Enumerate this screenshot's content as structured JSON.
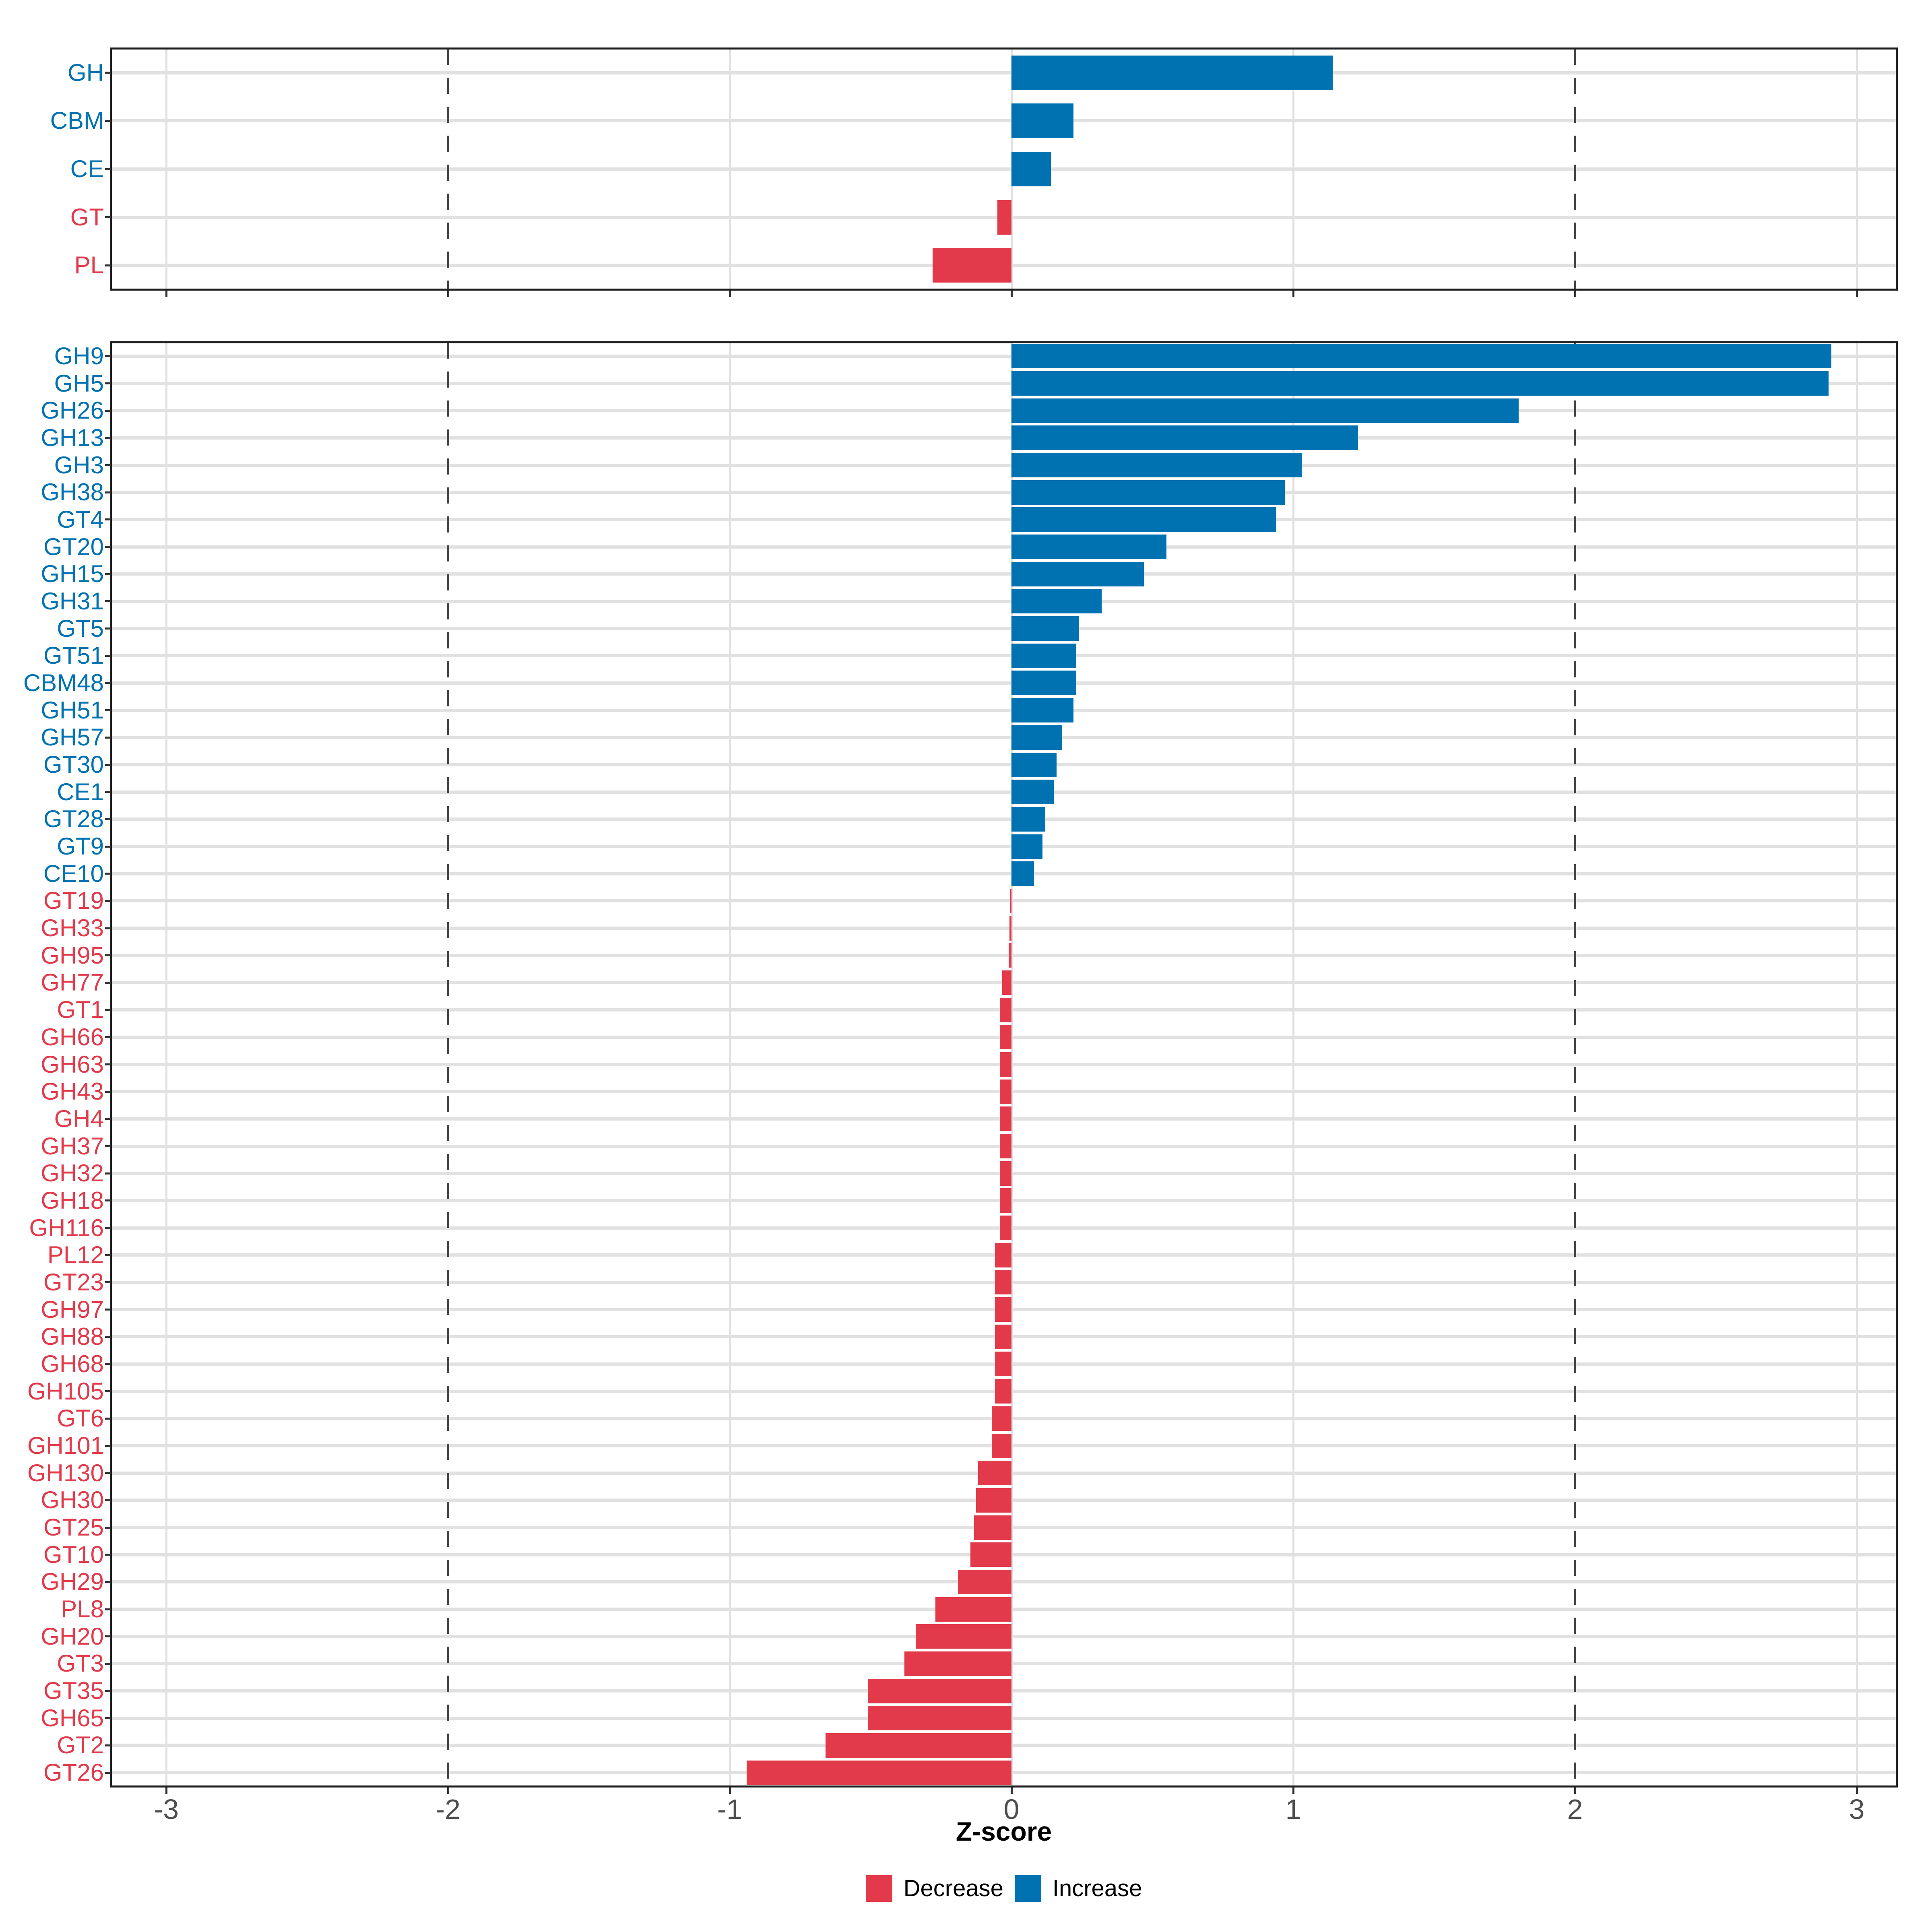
{
  "figure": {
    "xlabel": "Z-score",
    "x_tick_labels": [
      "-3",
      "-2",
      "-1",
      "0",
      "1",
      "2",
      "3"
    ],
    "legend": {
      "position": "bottom",
      "items": [
        {
          "label": "Decrease",
          "color": "#e2394b",
          "direction": "negative"
        },
        {
          "label": "Increase",
          "color": "#0072b2",
          "direction": "positive"
        }
      ]
    },
    "colors": {
      "increase_bar": "#0072b2",
      "decrease_bar": "#e2394b",
      "grid_line": "#e1e1e1",
      "dashed_reference_line": "#3e3e3e",
      "axis_tick_label": "#4d4d4d",
      "panel_border": "#1f1f1f",
      "background": "#ffffff"
    }
  },
  "chart_data": [
    {
      "type": "bar",
      "panel": "top-classes",
      "orientation": "horizontal",
      "title": "",
      "xlabel": "Z-score",
      "ylabel": "",
      "xlim": [
        -3.2,
        3.14
      ],
      "xticks": [
        -3,
        -2,
        -1,
        0,
        1,
        2,
        3
      ],
      "reference_lines": [
        -2,
        2
      ],
      "grid": true,
      "categories": [
        "GH",
        "CBM",
        "CE",
        "GT",
        "PL"
      ],
      "values": [
        1.14,
        0.22,
        0.14,
        -0.05,
        -0.28
      ]
    },
    {
      "type": "bar",
      "panel": "bottom-families",
      "orientation": "horizontal",
      "title": "",
      "xlabel": "Z-score",
      "ylabel": "",
      "xlim": [
        -3.2,
        3.14
      ],
      "xticks": [
        -3,
        -2,
        -1,
        0,
        1,
        2,
        3
      ],
      "reference_lines": [
        -2,
        2
      ],
      "grid": true,
      "categories": [
        "GH9",
        "GH5",
        "GH26",
        "GH13",
        "GH3",
        "GH38",
        "GT4",
        "GT20",
        "GH15",
        "GH31",
        "GT5",
        "GT51",
        "CBM48",
        "GH51",
        "GH57",
        "GT30",
        "CE1",
        "GT28",
        "GT9",
        "CE10",
        "GT19",
        "GH33",
        "GH95",
        "GH77",
        "GT1",
        "GH66",
        "GH63",
        "GH43",
        "GH4",
        "GH37",
        "GH32",
        "GH18",
        "GH116",
        "PL12",
        "GT23",
        "GH97",
        "GH88",
        "GH68",
        "GH105",
        "GT6",
        "GH101",
        "GH130",
        "GH30",
        "GT25",
        "GT10",
        "GH29",
        "PL8",
        "GH20",
        "GT3",
        "GT35",
        "GH65",
        "GT2",
        "GT26"
      ],
      "values": [
        2.91,
        2.9,
        1.8,
        1.23,
        1.03,
        0.97,
        0.94,
        0.55,
        0.47,
        0.32,
        0.24,
        0.23,
        0.23,
        0.22,
        0.18,
        0.16,
        0.15,
        0.12,
        0.11,
        0.08,
        -0.005,
        -0.007,
        -0.01,
        -0.033,
        -0.042,
        -0.042,
        -0.042,
        -0.042,
        -0.042,
        -0.042,
        -0.042,
        -0.042,
        -0.042,
        -0.058,
        -0.058,
        -0.058,
        -0.058,
        -0.058,
        -0.058,
        -0.07,
        -0.07,
        -0.119,
        -0.126,
        -0.133,
        -0.146,
        -0.19,
        -0.27,
        -0.34,
        -0.38,
        -0.51,
        -0.51,
        -0.66,
        -0.94
      ]
    }
  ]
}
